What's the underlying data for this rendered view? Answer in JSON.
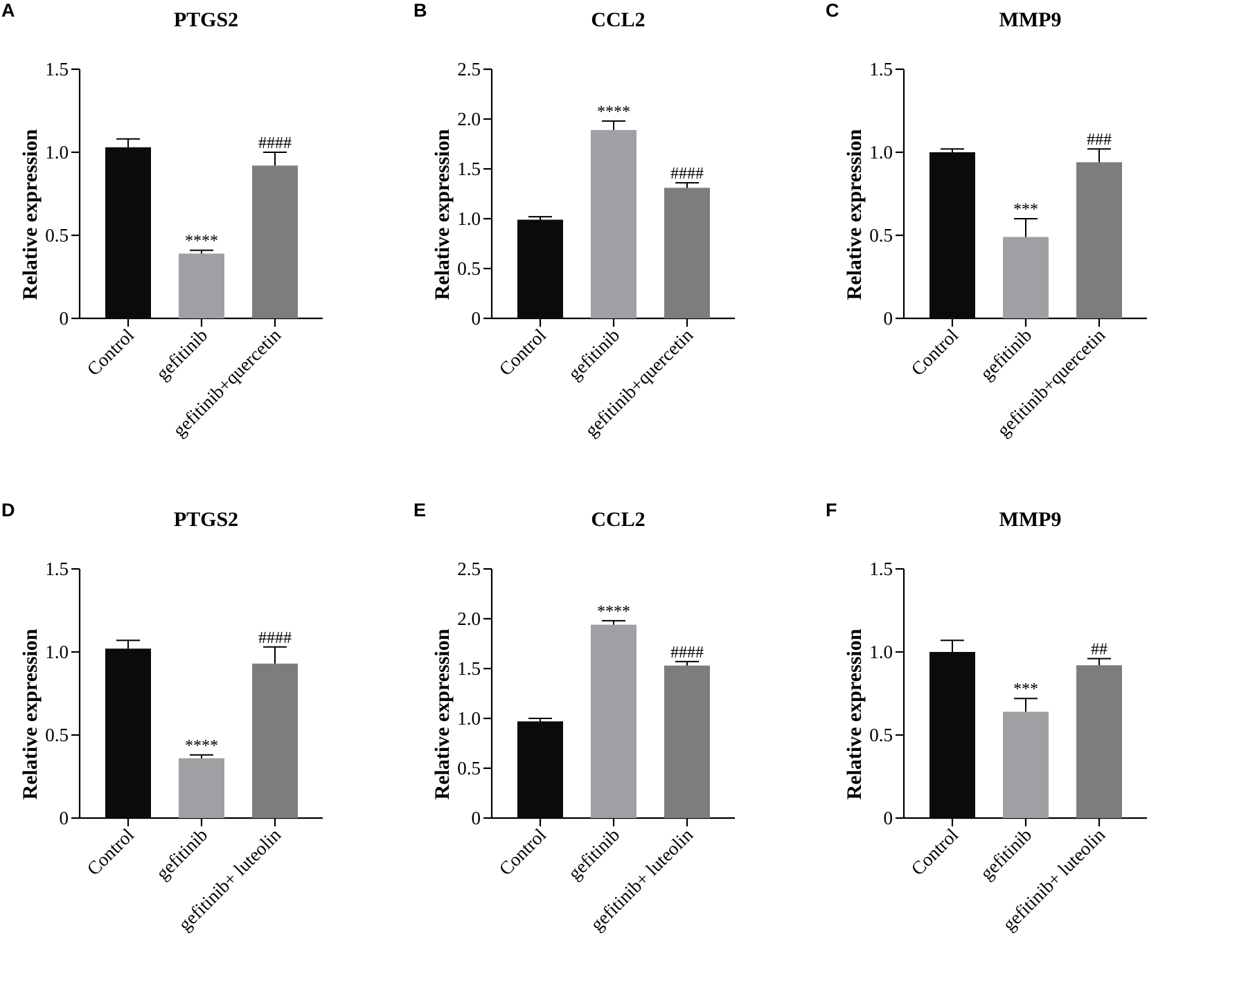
{
  "chart_data": [
    {
      "panel": "A",
      "type": "bar",
      "title": "PTGS2",
      "xlabel": "",
      "ylabel": "Relative expression",
      "ylim": [
        0,
        1.5
      ],
      "yticks": [
        "0",
        "0.5",
        "1.0",
        "1.5"
      ],
      "ytick_values": [
        0,
        0.5,
        1.0,
        1.5
      ],
      "categories": [
        "Control",
        "gefitinib",
        "gefitinib+quercetin"
      ],
      "values": [
        1.03,
        0.39,
        0.92
      ],
      "errors": [
        0.05,
        0.02,
        0.08
      ],
      "annotations": [
        "",
        "****",
        "####"
      ],
      "colors": [
        "#0b0b0b",
        "#a0a0a4",
        "#7d7e7c"
      ]
    },
    {
      "panel": "B",
      "type": "bar",
      "title": "CCL2",
      "xlabel": "",
      "ylabel": "Relative expression",
      "ylim": [
        0,
        2.5
      ],
      "yticks": [
        "0",
        "0.5",
        "1.0",
        "1.5",
        "2.0",
        "2.5"
      ],
      "ytick_values": [
        0,
        0.5,
        1.0,
        1.5,
        2.0,
        2.5
      ],
      "categories": [
        "Control",
        "gefitinib",
        "gefitinib+quercetin"
      ],
      "values": [
        0.99,
        1.89,
        1.31
      ],
      "errors": [
        0.03,
        0.09,
        0.05
      ],
      "annotations": [
        "",
        "****",
        "####"
      ],
      "colors": [
        "#0b0b0b",
        "#a0a0a4",
        "#7d7e7c"
      ]
    },
    {
      "panel": "C",
      "type": "bar",
      "title": "MMP9",
      "xlabel": "",
      "ylabel": "Relative expression",
      "ylim": [
        0,
        1.5
      ],
      "yticks": [
        "0",
        "0.5",
        "1.0",
        "1.5"
      ],
      "ytick_values": [
        0,
        0.5,
        1.0,
        1.5
      ],
      "categories": [
        "Control",
        "gefitinib",
        "gefitinib+quercetin"
      ],
      "values": [
        1.0,
        0.49,
        0.94
      ],
      "errors": [
        0.02,
        0.11,
        0.08
      ],
      "annotations": [
        "",
        "***",
        "###"
      ],
      "colors": [
        "#0b0b0b",
        "#a0a0a4",
        "#7d7e7c"
      ]
    },
    {
      "panel": "D",
      "type": "bar",
      "title": "PTGS2",
      "xlabel": "",
      "ylabel": "Relative expression",
      "ylim": [
        0,
        1.5
      ],
      "yticks": [
        "0",
        "0.5",
        "1.0",
        "1.5"
      ],
      "ytick_values": [
        0,
        0.5,
        1.0,
        1.5
      ],
      "categories": [
        "Control",
        "gefitinib",
        "gefitinib+ luteolin"
      ],
      "values": [
        1.02,
        0.36,
        0.93
      ],
      "errors": [
        0.05,
        0.02,
        0.1
      ],
      "annotations": [
        "",
        "****",
        "####"
      ],
      "colors": [
        "#0b0b0b",
        "#a0a0a4",
        "#7d7e7c"
      ]
    },
    {
      "panel": "E",
      "type": "bar",
      "title": "CCL2",
      "xlabel": "",
      "ylabel": "Relative expression",
      "ylim": [
        0,
        2.5
      ],
      "yticks": [
        "0",
        "0.5",
        "1.0",
        "1.5",
        "2.0",
        "2.5"
      ],
      "ytick_values": [
        0,
        0.5,
        1.0,
        1.5,
        2.0,
        2.5
      ],
      "categories": [
        "Control",
        "gefitinib",
        "gefitinib+ luteolin"
      ],
      "values": [
        0.97,
        1.94,
        1.53
      ],
      "errors": [
        0.03,
        0.04,
        0.04
      ],
      "annotations": [
        "",
        "****",
        "####"
      ],
      "colors": [
        "#0b0b0b",
        "#a0a0a4",
        "#7d7e7c"
      ]
    },
    {
      "panel": "F",
      "type": "bar",
      "title": "MMP9",
      "xlabel": "",
      "ylabel": "Relative expression",
      "ylim": [
        0,
        1.5
      ],
      "yticks": [
        "0",
        "0.5",
        "1.0",
        "1.5"
      ],
      "ytick_values": [
        0,
        0.5,
        1.0,
        1.5
      ],
      "categories": [
        "Control",
        "gefitinib",
        "gefitinib+ luteolin"
      ],
      "values": [
        1.0,
        0.64,
        0.92
      ],
      "errors": [
        0.07,
        0.08,
        0.04
      ],
      "annotations": [
        "",
        "***",
        "##"
      ],
      "colors": [
        "#0b0b0b",
        "#a0a0a4",
        "#7d7e7c"
      ]
    }
  ]
}
